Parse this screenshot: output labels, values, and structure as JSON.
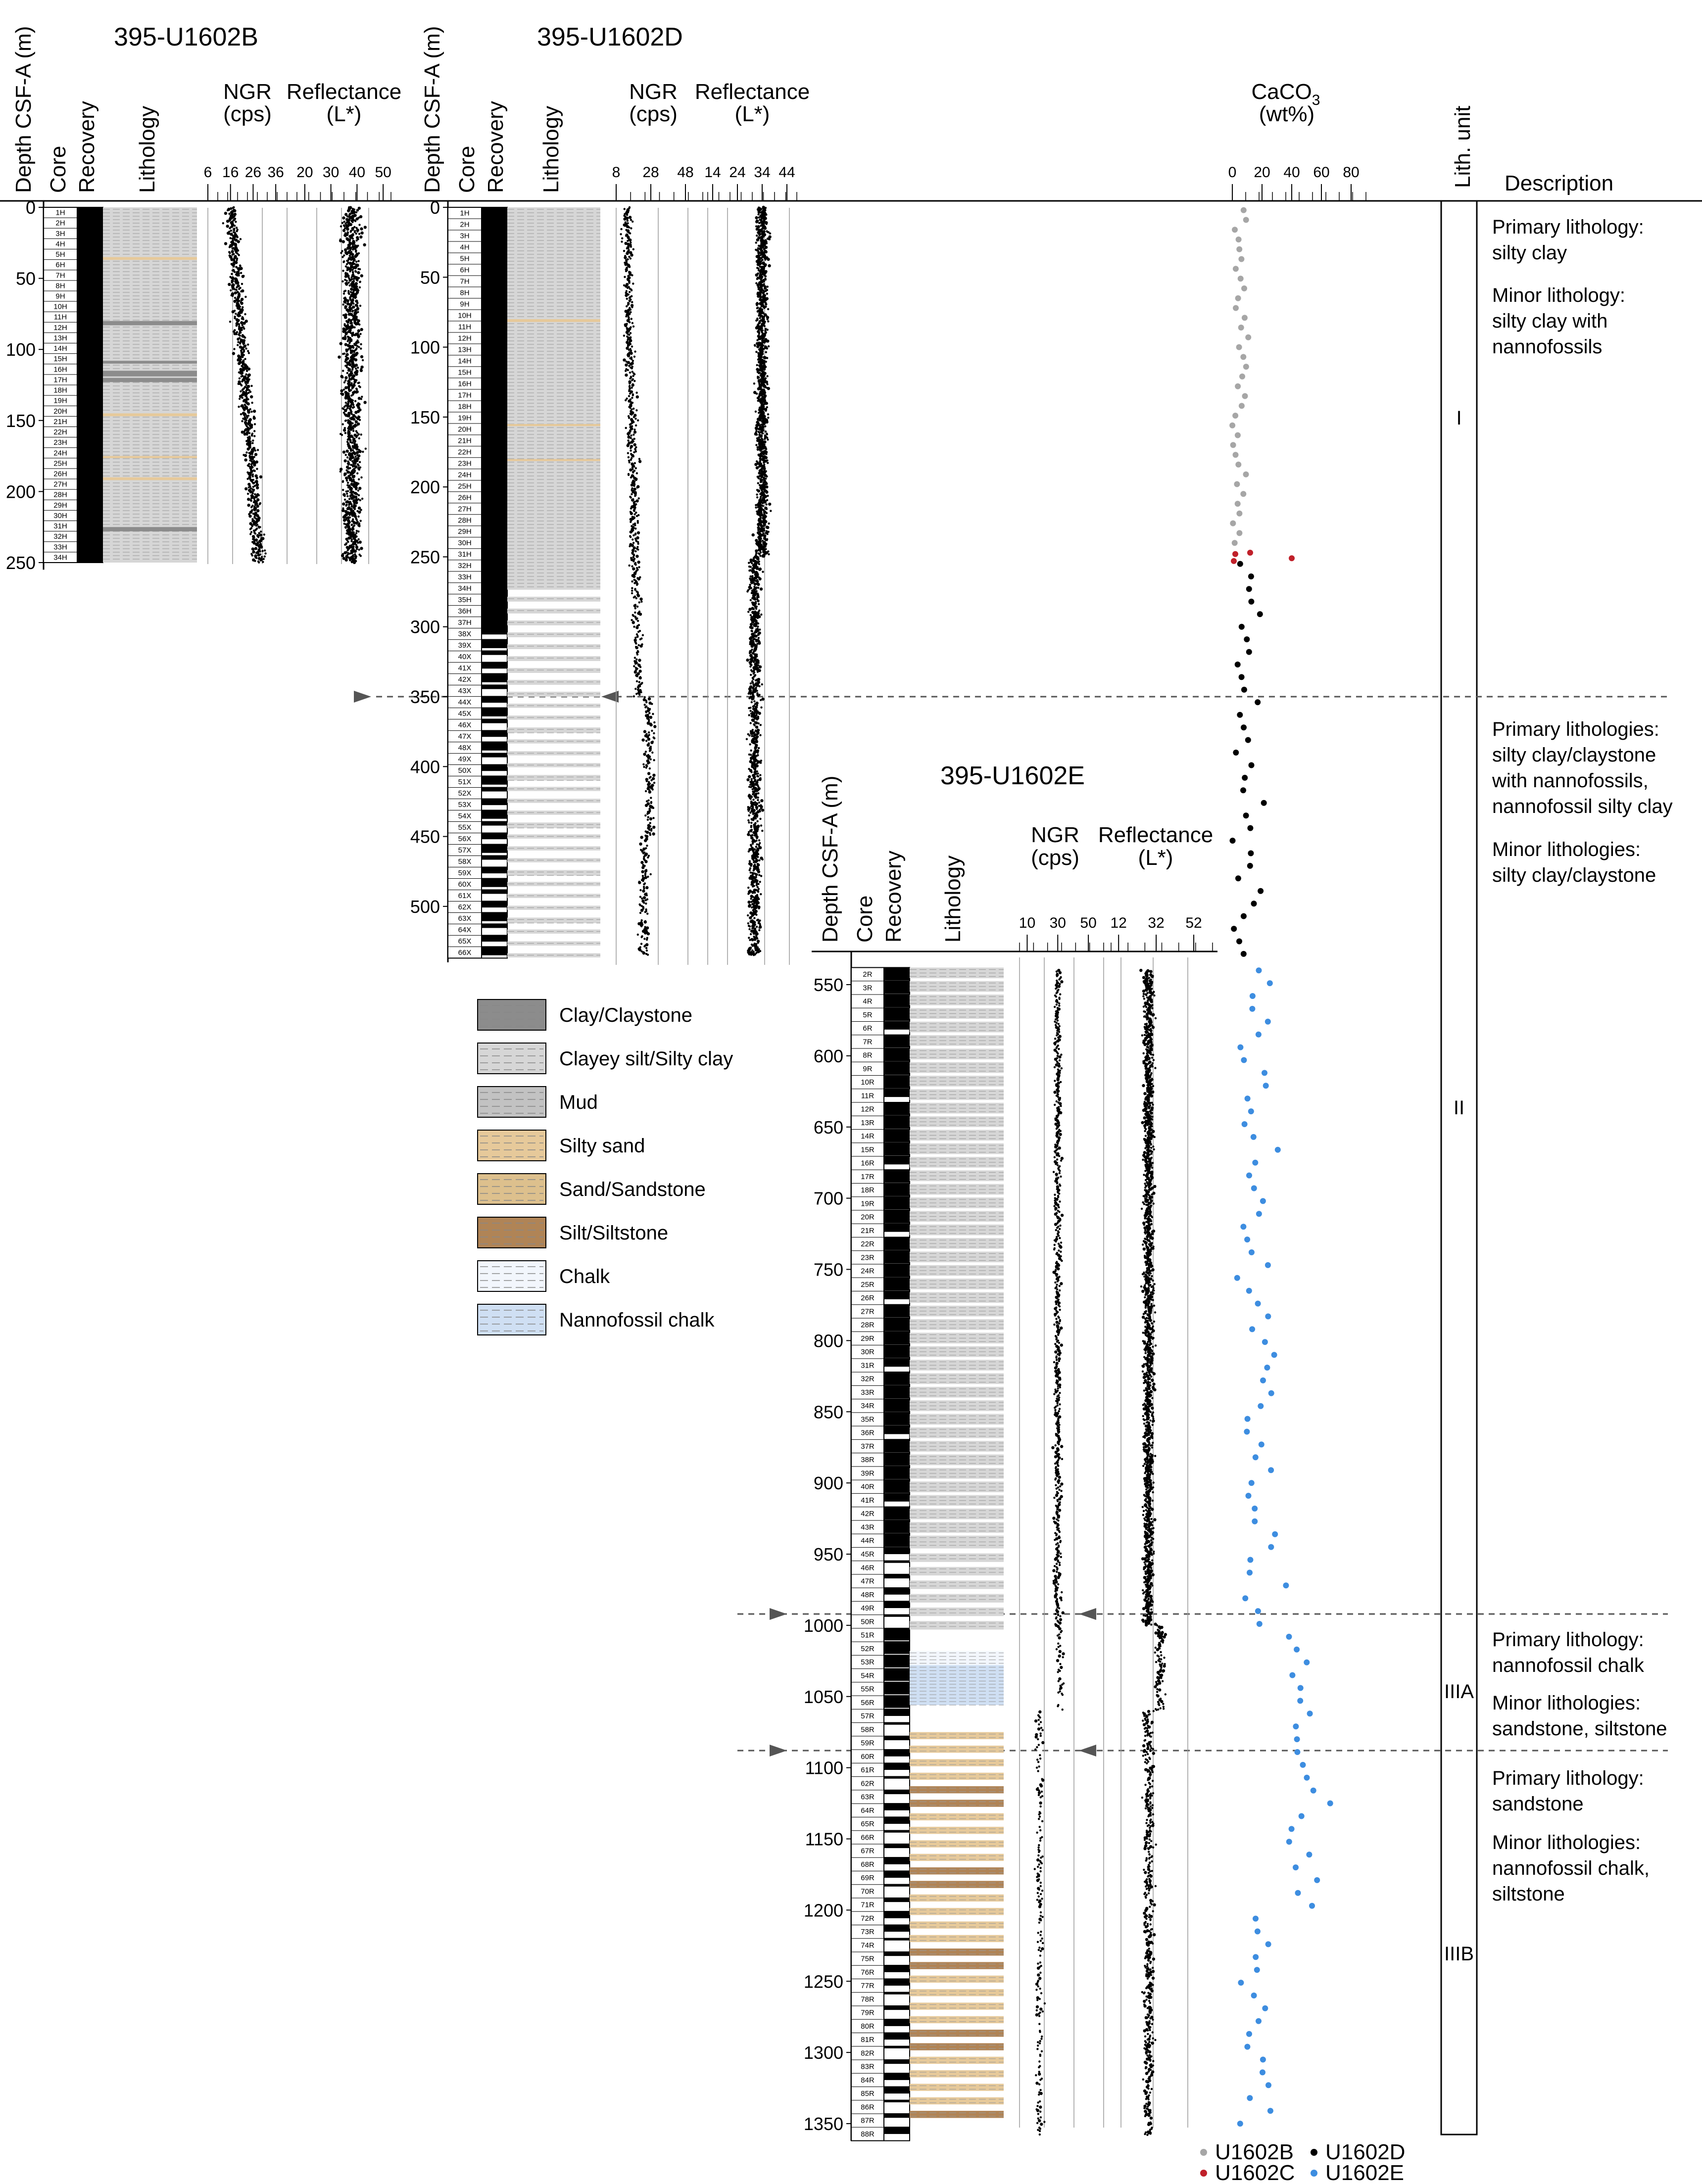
{
  "colors": {
    "clay": "#8c8c8c",
    "silty_clay": "#d6d6d6",
    "mud": "#c2c2c2",
    "silty_sand": "#e6c99a",
    "sand": "#ddc08d",
    "silt": "#b08456",
    "chalk": "#f2f6fc",
    "nanno_chalk": "#cfdff3",
    "U1602B": "#a6a6a6",
    "U1602C": "#c0202a",
    "U1602D": "#000000",
    "U1602E": "#3d8de0"
  },
  "holes": [
    {
      "name": "395-U1602B",
      "depth_label": "Depth CSF-A (m)",
      "core_label": "Core",
      "recovery_label": "Recovery",
      "lithology_label": "Lithology",
      "ngr_label": "NGR",
      "ngr_unit": "(cps)",
      "refl_label": "Reflectance",
      "refl_unit": "(L*)",
      "depth_ticks": [
        0,
        50,
        100,
        150,
        200,
        250
      ],
      "ngr_ticks": [
        6,
        16,
        26,
        36
      ],
      "refl_ticks": [
        20,
        30,
        40,
        50
      ],
      "cores": [
        "1H",
        "2H",
        "3H",
        "4H",
        "5H",
        "6H",
        "7H",
        "8H",
        "9H",
        "10H",
        "11H",
        "12H",
        "13H",
        "14H",
        "15H",
        "16H",
        "17H",
        "18H",
        "19H",
        "20H",
        "21H",
        "22H",
        "23H",
        "24H",
        "25H",
        "26H",
        "27H",
        "28H",
        "29H",
        "30H",
        "31H",
        "32H",
        "33H",
        "34H"
      ]
    },
    {
      "name": "395-U1602D",
      "depth_label": "Depth CSF-A (m)",
      "core_label": "Core",
      "recovery_label": "Recovery",
      "lithology_label": "Lithology",
      "ngr_label": "NGR",
      "ngr_unit": "(cps)",
      "refl_label": "Reflectance",
      "refl_unit": "(L*)",
      "depth_ticks": [
        0,
        50,
        100,
        150,
        200,
        250,
        300,
        350,
        400,
        450,
        500
      ],
      "ngr_ticks": [
        8,
        28,
        48
      ],
      "refl_ticks": [
        14,
        24,
        34,
        44
      ],
      "cores": [
        "1H",
        "2H",
        "3H",
        "4H",
        "5H",
        "6H",
        "7H",
        "8H",
        "9H",
        "10H",
        "11H",
        "12H",
        "13H",
        "14H",
        "15H",
        "16H",
        "17H",
        "18H",
        "19H",
        "20H",
        "21H",
        "22H",
        "23H",
        "24H",
        "25H",
        "26H",
        "27H",
        "28H",
        "29H",
        "30H",
        "31H",
        "32H",
        "33H",
        "34H",
        "35H",
        "36H",
        "37H",
        "38X",
        "39X",
        "40X",
        "41X",
        "42X",
        "43X",
        "44X",
        "45X",
        "46X",
        "47X",
        "48X",
        "49X",
        "50X",
        "51X",
        "52X",
        "53X",
        "54X",
        "55X",
        "56X",
        "57X",
        "58X",
        "59X",
        "60X",
        "61X",
        "62X",
        "63X",
        "64X",
        "65X",
        "66X"
      ]
    },
    {
      "name": "395-U1602E",
      "depth_label": "Depth CSF-A (m)",
      "core_label": "Core",
      "recovery_label": "Recovery",
      "lithology_label": "Lithology",
      "ngr_label": "NGR",
      "ngr_unit": "(cps)",
      "refl_label": "Reflectance",
      "refl_unit": "(L*)",
      "depth_ticks": [
        550,
        600,
        650,
        700,
        750,
        800,
        850,
        900,
        950,
        1000,
        1050,
        1100,
        1150,
        1200,
        1250,
        1300,
        1350
      ],
      "ngr_ticks": [
        10,
        30,
        50
      ],
      "refl_ticks": [
        12,
        32,
        52
      ],
      "cores": [
        "2R",
        "3R",
        "4R",
        "5R",
        "6R",
        "7R",
        "8R",
        "9R",
        "10R",
        "11R",
        "12R",
        "13R",
        "14R",
        "15R",
        "16R",
        "17R",
        "18R",
        "19R",
        "20R",
        "21R",
        "22R",
        "23R",
        "24R",
        "25R",
        "26R",
        "27R",
        "28R",
        "29R",
        "30R",
        "31R",
        "32R",
        "33R",
        "34R",
        "35R",
        "36R",
        "37R",
        "38R",
        "39R",
        "40R",
        "41R",
        "42R",
        "43R",
        "44R",
        "45R",
        "46R",
        "47R",
        "48R",
        "49R",
        "50R",
        "51R",
        "52R",
        "53R",
        "54R",
        "55R",
        "56R",
        "57R",
        "58R",
        "59R",
        "60R",
        "61R",
        "62R",
        "63R",
        "64R",
        "65R",
        "66R",
        "67R",
        "68R",
        "69R",
        "70R",
        "71R",
        "72R",
        "73R",
        "74R",
        "75R",
        "76R",
        "77R",
        "78R",
        "79R",
        "80R",
        "81R",
        "82R",
        "83R",
        "84R",
        "85R",
        "86R",
        "87R",
        "88R"
      ]
    }
  ],
  "caco3": {
    "label": "CaCO",
    "sub": "3",
    "unit": "(wt%)",
    "ticks": [
      0,
      20,
      40,
      60,
      80
    ]
  },
  "lith_unit_label": "Lith. unit",
  "description_label": "Description",
  "units": [
    {
      "label": "I",
      "desc": [
        "Primary lithology:",
        "silty clay",
        "",
        "Minor lithology:",
        "silty clay with",
        "nannofossils"
      ]
    },
    {
      "label": "II",
      "desc": [
        "Primary lithologies:",
        "silty clay/claystone",
        "with nannofossils,",
        "nannofossil silty clay",
        "",
        "Minor lithologies:",
        "silty clay/claystone"
      ]
    },
    {
      "label": "IIIA",
      "desc": [
        "Primary lithology:",
        "nannofossil chalk",
        "",
        "Minor lithologies:",
        "sandstone, siltstone"
      ]
    },
    {
      "label": "IIIB",
      "desc": [
        "Primary lithology:",
        "sandstone",
        "",
        "Minor lithologies:",
        "nannofossil chalk,",
        "siltstone"
      ]
    }
  ],
  "legend": [
    {
      "key": "clay",
      "label": "Clay/Claystone"
    },
    {
      "key": "silty_clay",
      "label": "Clayey silt/Silty clay"
    },
    {
      "key": "mud",
      "label": "Mud"
    },
    {
      "key": "silty_sand",
      "label": "Silty sand"
    },
    {
      "key": "sand",
      "label": "Sand/Sandstone"
    },
    {
      "key": "silt",
      "label": "Silt/Siltstone"
    },
    {
      "key": "chalk",
      "label": "Chalk"
    },
    {
      "key": "nanno_chalk",
      "label": "Nannofossil chalk"
    }
  ],
  "site_legend": [
    {
      "label": "U1602B",
      "color": "#a6a6a6"
    },
    {
      "label": "U1602D",
      "color": "#000000"
    },
    {
      "label": "U1602C",
      "color": "#c0202a"
    },
    {
      "label": "U1602E",
      "color": "#3d8de0"
    }
  ]
}
